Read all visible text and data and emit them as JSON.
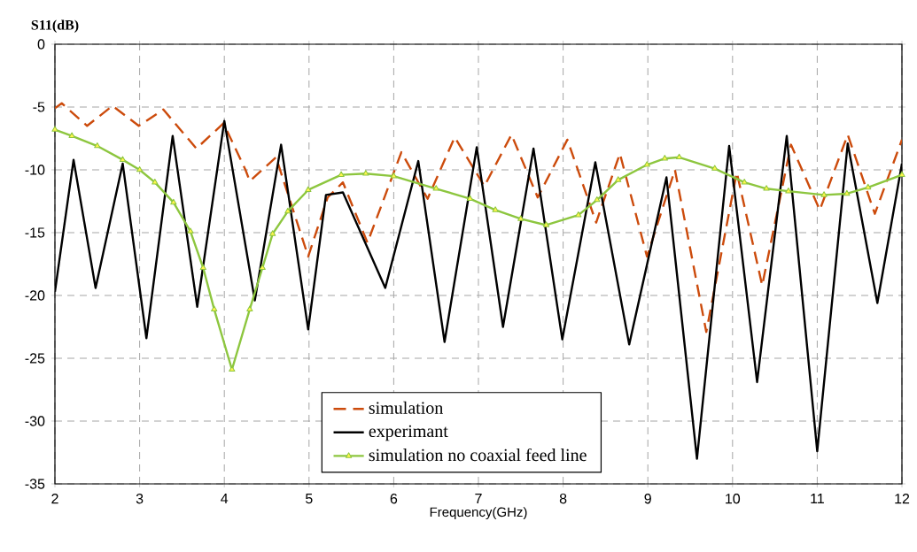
{
  "chart_data": {
    "type": "line",
    "ylabel": "S11(dB)",
    "xlabel": "Frequency(GHz)",
    "xlim": [
      2,
      12
    ],
    "xticks": [
      2,
      3,
      4,
      5,
      6,
      7,
      8,
      9,
      10,
      11,
      12
    ],
    "ylim": [
      -35,
      0
    ],
    "yticks": [
      -35,
      -30,
      -25,
      -20,
      -15,
      -10,
      -5,
      0
    ],
    "grid": true,
    "legend": "bottom",
    "series": [
      {
        "name": "simulation",
        "color": "#cc4b0c",
        "line_style": "dashed",
        "marker": "none",
        "x": [
          2,
          2.08,
          2.38,
          2.68,
          2.99,
          3.28,
          3.67,
          3.99,
          4.25,
          4.3,
          4.61,
          4.99,
          5.22,
          5.4,
          5.69,
          6.09,
          6.4,
          6.72,
          7.07,
          7.39,
          7.7,
          8.05,
          8.39,
          8.67,
          8.99,
          9.32,
          9.69,
          10.05,
          10.35,
          10.69,
          11.03,
          11.36,
          11.68,
          12
        ],
        "values": [
          -5.1,
          -4.7,
          -6.5,
          -4.9,
          -6.5,
          -5.2,
          -8.3,
          -6.3,
          -10,
          -10.9,
          -9.0,
          -16.9,
          -12.2,
          -11,
          -15.8,
          -8.6,
          -12.3,
          -7.4,
          -11.3,
          -7.2,
          -12.2,
          -7.6,
          -14.2,
          -8.7,
          -16.9,
          -10,
          -22.9,
          -10.2,
          -19.2,
          -8.0,
          -13.2,
          -7.2,
          -13.5,
          -7.6
        ]
      },
      {
        "name": "experimant",
        "color": "#000000",
        "line_style": "solid",
        "marker": "none",
        "x": [
          2,
          2.22,
          2.48,
          2.8,
          3.08,
          3.39,
          3.68,
          4.0,
          4.36,
          4.67,
          4.99,
          5.2,
          5.4,
          5.9,
          6.29,
          6.6,
          6.98,
          7.29,
          7.65,
          7.99,
          8.38,
          8.78,
          9.22,
          9.58,
          9.96,
          10.29,
          10.64,
          11.0,
          11.36,
          11.71,
          12
        ],
        "values": [
          -19.7,
          -9.2,
          -19.4,
          -9.5,
          -23.4,
          -7.3,
          -20.9,
          -6.1,
          -20.4,
          -8.0,
          -22.7,
          -12.0,
          -11.8,
          -19.4,
          -9.3,
          -23.7,
          -8.2,
          -22.5,
          -8.3,
          -23.5,
          -9.4,
          -23.9,
          -10.6,
          -33,
          -8.1,
          -26.9,
          -7.3,
          -32.4,
          -7.9,
          -20.6,
          -9.5
        ]
      },
      {
        "name": "simulation no coaxial feed line",
        "color": "#8dc63f",
        "line_style": "solid",
        "marker": "triangle",
        "x": [
          2,
          2.2,
          2.5,
          2.8,
          3.0,
          3.18,
          3.4,
          3.6,
          3.75,
          3.88,
          4.09,
          4.3,
          4.45,
          4.57,
          4.75,
          4.99,
          5.38,
          5.67,
          6.0,
          6.5,
          6.9,
          7.2,
          7.5,
          7.8,
          8.18,
          8.4,
          8.65,
          8.99,
          9.2,
          9.37,
          9.79,
          10.14,
          10.4,
          10.66,
          11.08,
          11.35,
          11.6,
          12
        ],
        "values": [
          -6.8,
          -7.3,
          -8.1,
          -9.2,
          -10,
          -11,
          -12.6,
          -14.9,
          -17.8,
          -21.1,
          -25.9,
          -21.1,
          -17.8,
          -15.1,
          -13.3,
          -11.6,
          -10.4,
          -10.3,
          -10.5,
          -11.5,
          -12.3,
          -13.2,
          -13.9,
          -14.4,
          -13.6,
          -12.4,
          -10.8,
          -9.6,
          -9.1,
          -9.0,
          -9.9,
          -11,
          -11.5,
          -11.7,
          -12.0,
          -11.9,
          -11.4,
          -10.4
        ]
      }
    ]
  }
}
